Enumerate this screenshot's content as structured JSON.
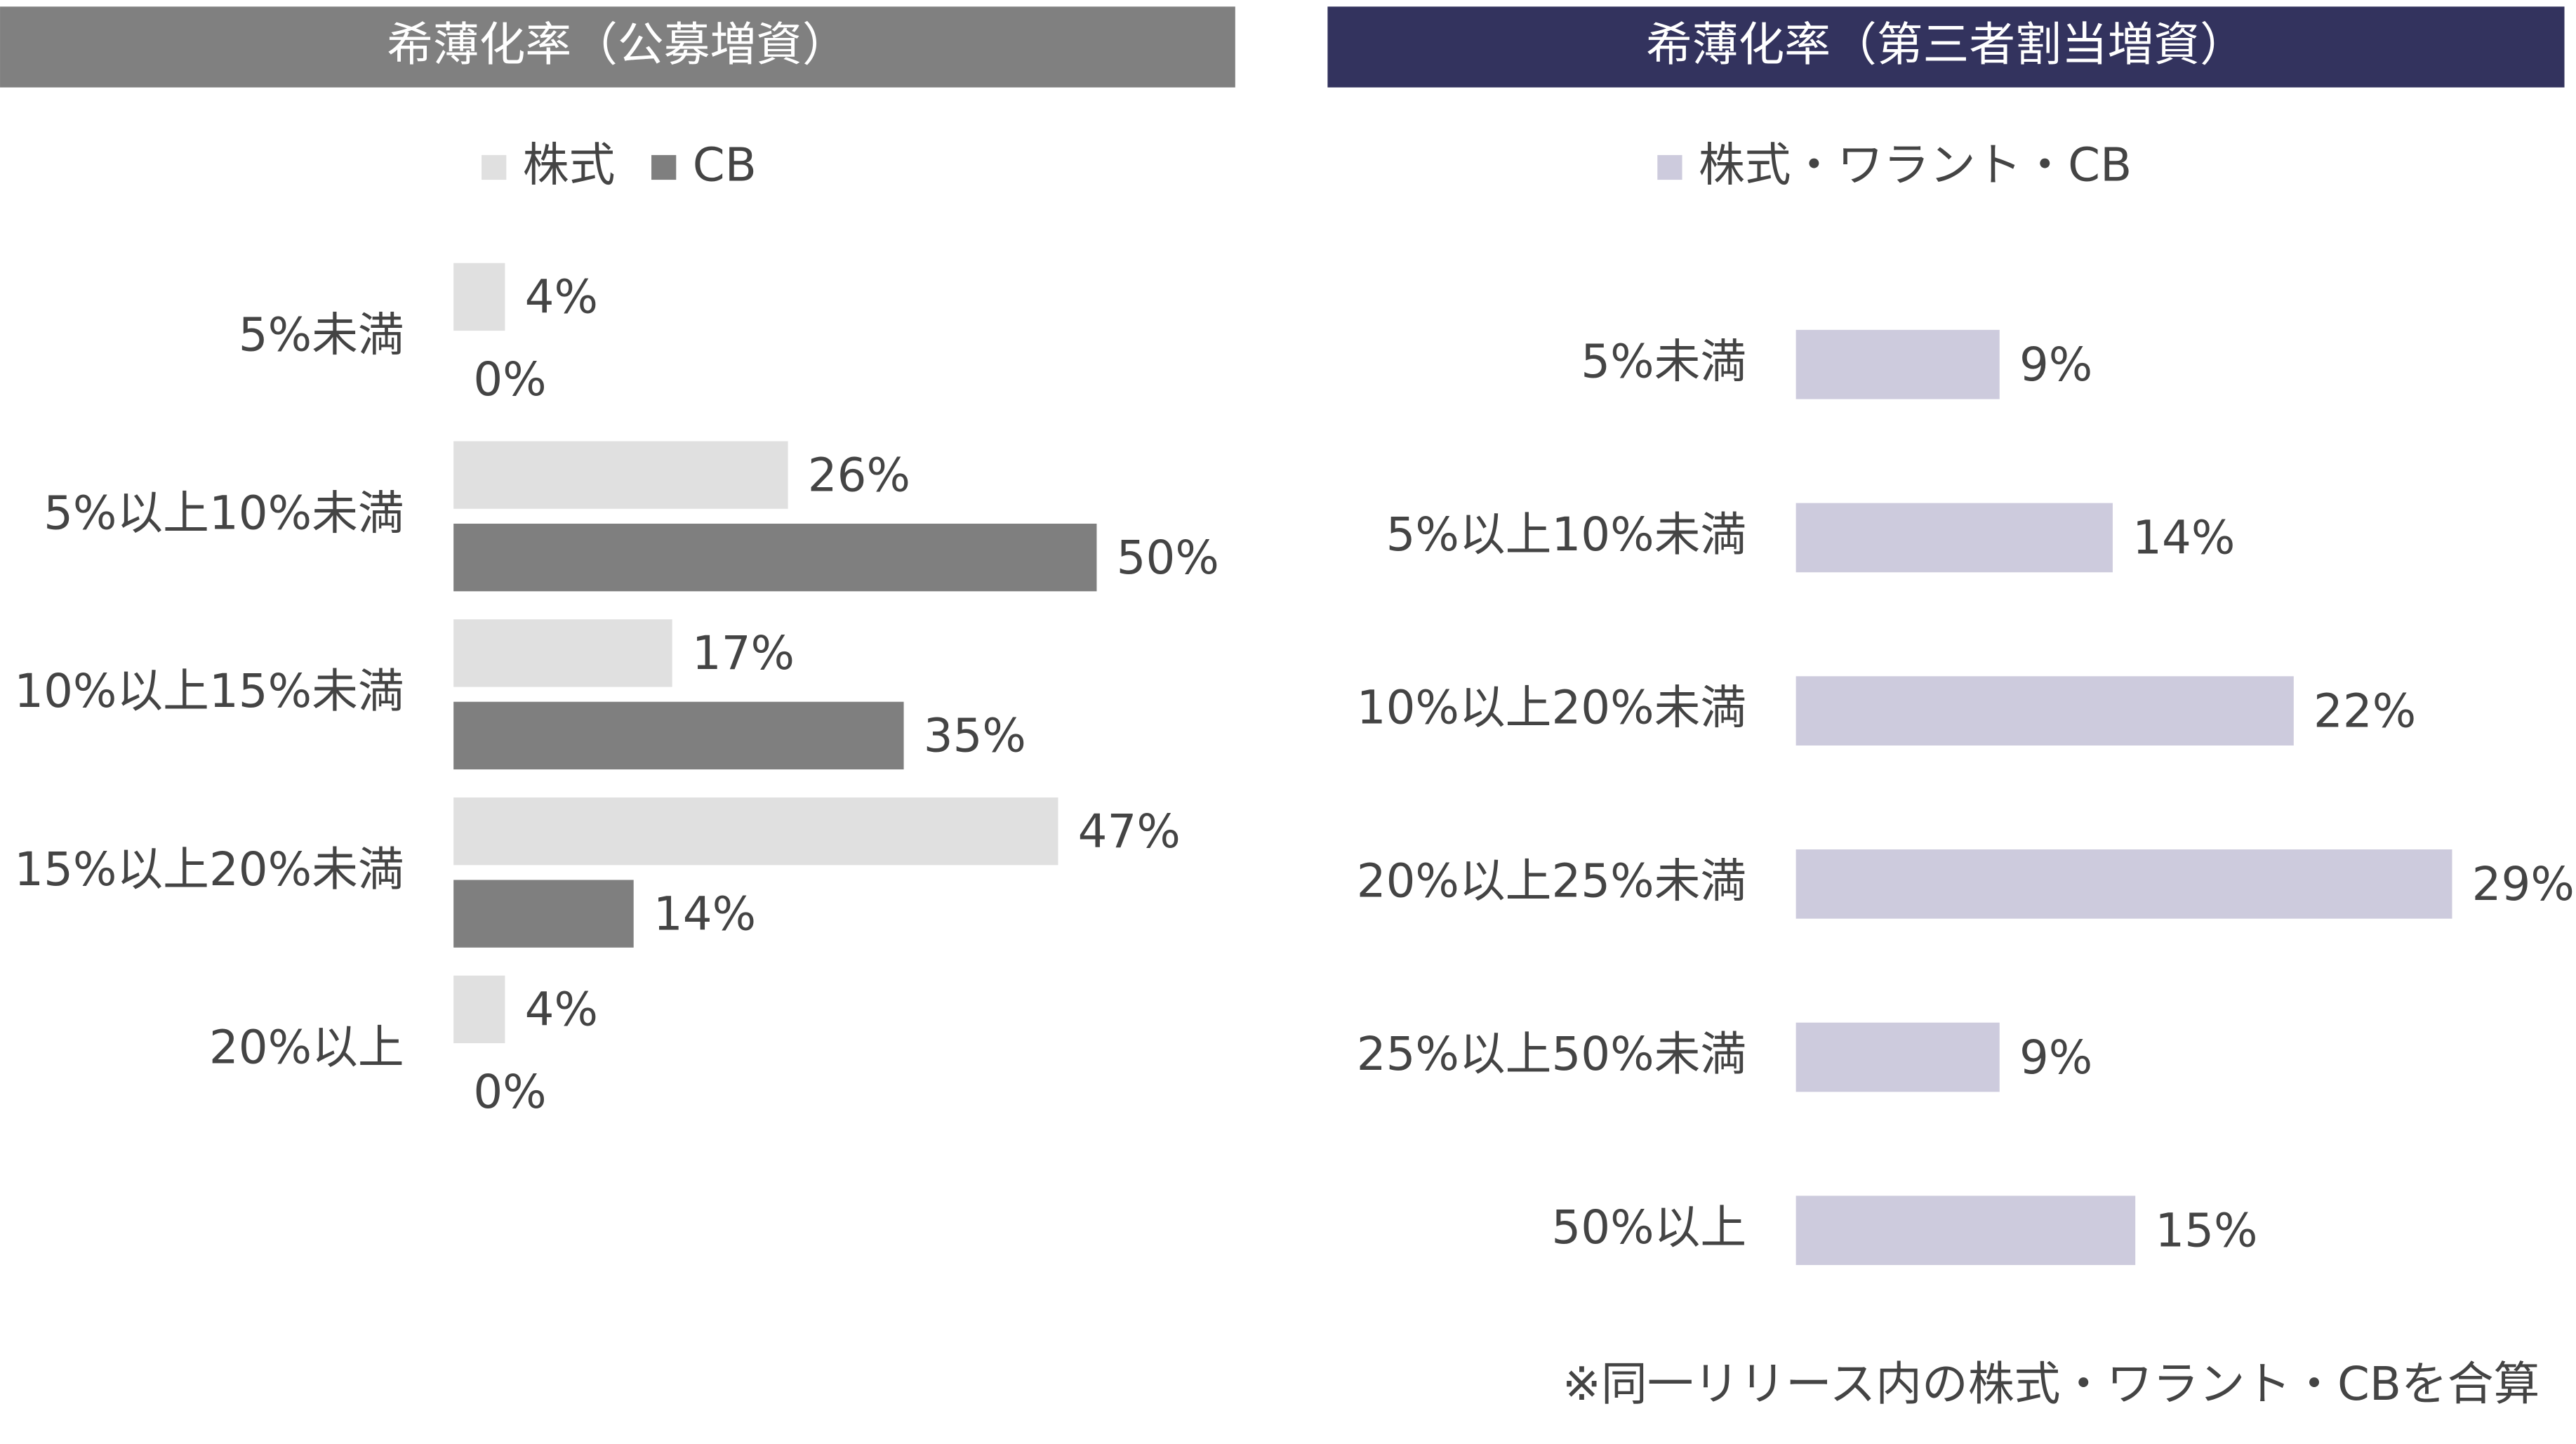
{
  "chart_data": [
    {
      "type": "bar",
      "orientation": "horizontal",
      "title": "希薄化率（公募増資）",
      "title_color": "#808080",
      "categories": [
        "5%未満",
        "5%以上10%未満",
        "10%以上15%未満",
        "15%以上20%未満",
        "20%以上"
      ],
      "series": [
        {
          "name": "株式",
          "color": "#e0e0e0",
          "values": [
            4,
            26,
            17,
            47,
            4
          ],
          "value_labels": [
            "4%",
            "26%",
            "17%",
            "47%",
            "4%"
          ]
        },
        {
          "name": "CB",
          "color": "#7f7f7f",
          "values": [
            0,
            50,
            35,
            14,
            0
          ],
          "value_labels": [
            "0%",
            "50%",
            "35%",
            "14%",
            "0%"
          ]
        }
      ]
    },
    {
      "type": "bar",
      "orientation": "horizontal",
      "title": "希薄化率（第三者割当増資）",
      "title_color": "#33335e",
      "categories": [
        "5%未満",
        "5%以上10%未満",
        "10%以上20%未満",
        "20%以上25%未満",
        "25%以上50%未満",
        "50%以上"
      ],
      "series": [
        {
          "name": "株式・ワラント・CB",
          "color": "#cdcbdd",
          "values": [
            9,
            14,
            22,
            29,
            9,
            15
          ],
          "value_labels": [
            "9%",
            "14%",
            "22%",
            "29%",
            "9%",
            "15%"
          ]
        }
      ],
      "note": "※同一リリース内の株式・ワラント・CBを合算"
    }
  ]
}
